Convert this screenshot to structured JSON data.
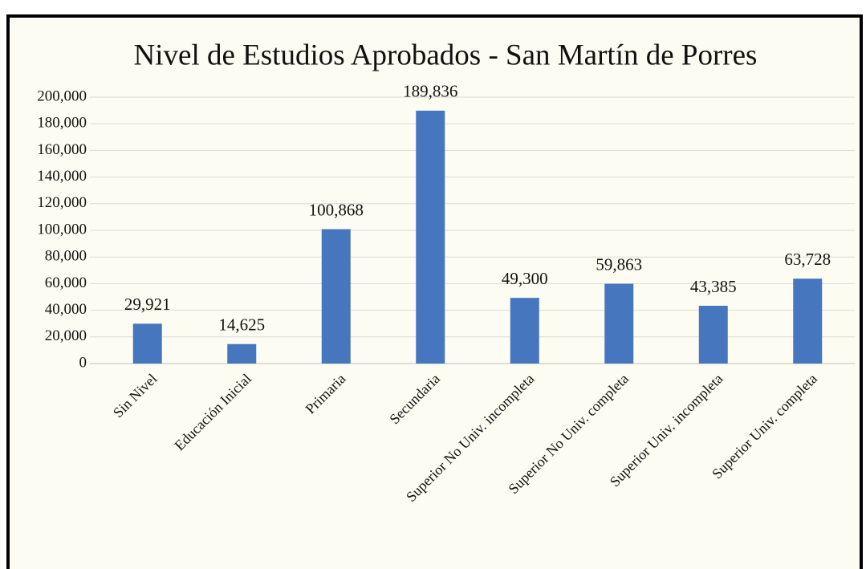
{
  "chart_data": {
    "type": "bar",
    "title": "Nivel de Estudios Aprobados - San Martín de Porres",
    "categories": [
      "Sin Nivel",
      "Educación Inicial",
      "Primaria",
      "Secundaria",
      "Superior No Univ. incompleta",
      "Superior No Univ. completa",
      "Superior Univ. incompleta",
      "Superior Univ. completa"
    ],
    "values": [
      29921,
      14625,
      100868,
      189836,
      49300,
      59863,
      43385,
      63728
    ],
    "value_labels": [
      "29,921",
      "14,625",
      "100,868",
      "189,836",
      "49,300",
      "59,863",
      "43,385",
      "63,728"
    ],
    "color": "#4677be",
    "ylim": [
      0,
      200000
    ],
    "yticks": [
      0,
      {
        "value": 20000,
        "label": "20,000"
      },
      {
        "value": 40000,
        "label": "40,000"
      },
      {
        "value": 60000,
        "label": "60,000"
      },
      {
        "value": 80000,
        "label": "80,000"
      },
      {
        "value": 100000,
        "label": "100,000"
      },
      {
        "value": 120000,
        "label": "120,000"
      },
      {
        "value": 140000,
        "label": "140,000"
      },
      {
        "value": 160000,
        "label": "160,000"
      },
      {
        "value": 180000,
        "label": "180,000"
      },
      {
        "value": 200000,
        "label": "200,000"
      }
    ],
    "grid": true
  }
}
